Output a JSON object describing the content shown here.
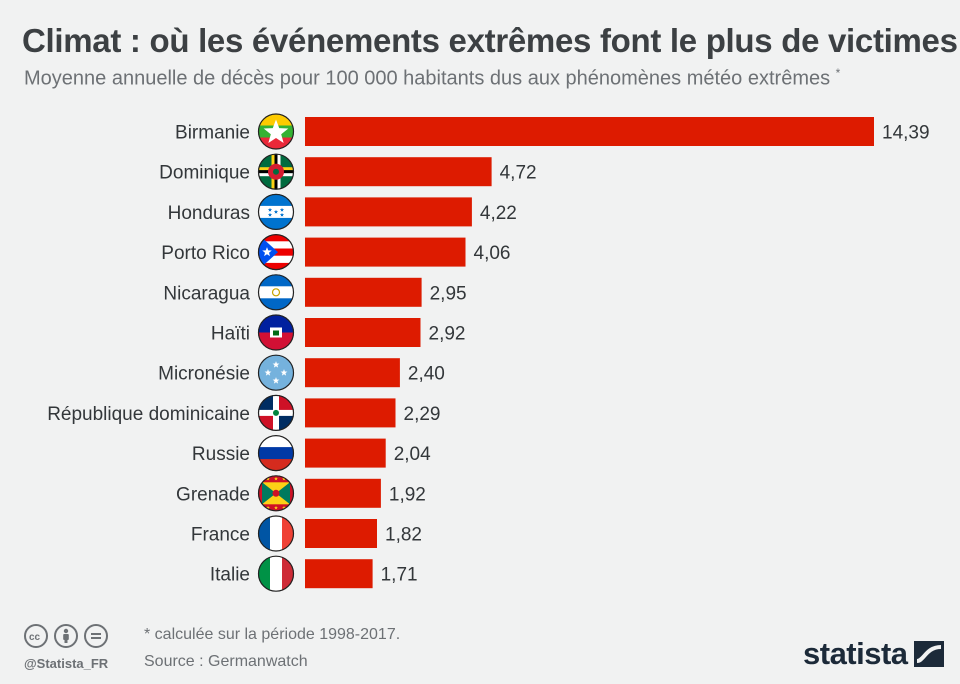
{
  "title": "Climat : où les événements extrêmes font le plus de victimes",
  "subtitle": "Moyenne annuelle de décès pour 100 000 habitants dus aux phénomènes météo extrêmes",
  "subtitle_mark": "*",
  "colors": {
    "bar": "#dd1b00",
    "text": "#33373a",
    "background": "#f1f2f2"
  },
  "chart_data": {
    "type": "bar",
    "orientation": "horizontal",
    "categories": [
      "Birmanie",
      "Dominique",
      "Honduras",
      "Porto Rico",
      "Nicaragua",
      "Haïti",
      "Micronésie",
      "République dominicaine",
      "Russie",
      "Grenade",
      "France",
      "Italie"
    ],
    "values": [
      14.39,
      4.72,
      4.22,
      4.06,
      2.95,
      2.92,
      2.4,
      2.29,
      2.04,
      1.92,
      1.82,
      1.71
    ],
    "value_labels": [
      "14,39",
      "4,72",
      "4,22",
      "4,06",
      "2,95",
      "2,92",
      "2,40",
      "2,29",
      "2,04",
      "1,92",
      "1,82",
      "1,71"
    ],
    "flags": [
      "flag-myanmar",
      "flag-dominica",
      "flag-honduras",
      "flag-puerto-rico",
      "flag-nicaragua",
      "flag-haiti",
      "flag-micronesia",
      "flag-dominican-republic",
      "flag-russia",
      "flag-grenada",
      "flag-france",
      "flag-italy"
    ],
    "xlim": [
      0,
      14.39
    ],
    "grid": false,
    "legend": "none"
  },
  "footer": {
    "note": "* calculée sur la période 1998-2017.",
    "source": "Source : Germanwatch",
    "handle": "@Statista_FR",
    "license_icons": [
      "cc-icon",
      "attribution-icon",
      "no-derivatives-icon"
    ],
    "brand": "statista"
  }
}
